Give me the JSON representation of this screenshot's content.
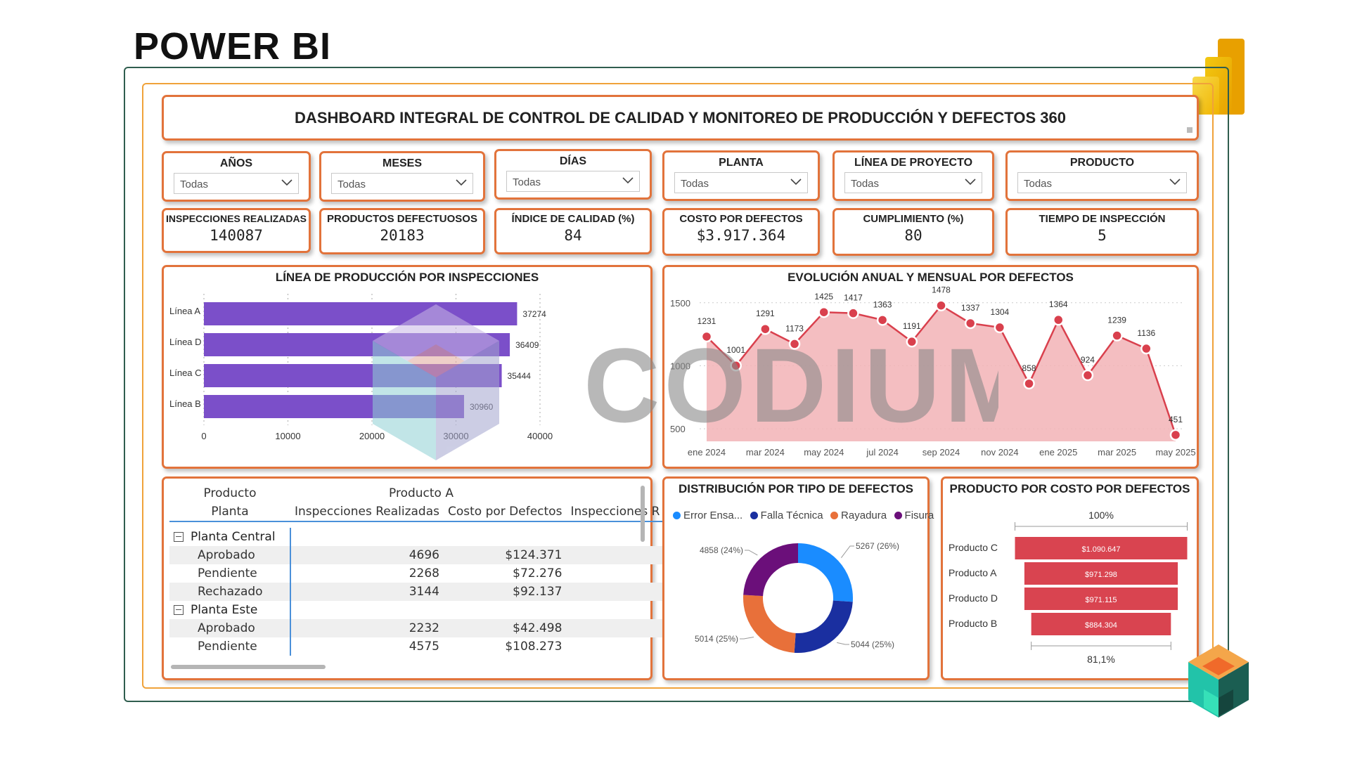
{
  "page_title": "POWER BI",
  "dashboard_title": "DASHBOARD INTEGRAL DE CONTROL DE CALIDAD Y MONITOREO DE PRODUCCIÓN Y DEFECTOS 360",
  "watermark": "CODIUM",
  "colors": {
    "accent_border": "#e2733b",
    "bar_purple": "#7b4fc9",
    "line_red": "#d9404d",
    "area_pink": "#f2b3b6",
    "funnel_red": "#d94450"
  },
  "slicers": [
    {
      "label": "AÑOS",
      "value": "Todas"
    },
    {
      "label": "MESES",
      "value": "Todas"
    },
    {
      "label": "DÍAS",
      "value": "Todas"
    },
    {
      "label": "PLANTA",
      "value": "Todas"
    },
    {
      "label": "LÍNEA DE PROYECTO",
      "value": "Todas"
    },
    {
      "label": "PRODUCTO",
      "value": "Todas"
    }
  ],
  "kpis": [
    {
      "label": "INSPECCIONES REALIZADAS",
      "value": "140087"
    },
    {
      "label": "PRODUCTOS DEFECTUOSOS",
      "value": "20183"
    },
    {
      "label": "ÍNDICE DE CALIDAD (%)",
      "value": "84"
    },
    {
      "label": "COSTO POR DEFECTOS",
      "value": "$3.917.364"
    },
    {
      "label": "CUMPLIMIENTO (%)",
      "value": "80"
    },
    {
      "label": "TIEMPO DE INSPECCIÓN",
      "value": "5"
    }
  ],
  "matrix": {
    "col_group_label": "Producto",
    "col_group_value": "Producto A",
    "row_header": "Planta",
    "columns": [
      "Inspecciones Realizadas",
      "Costo por Defectos",
      "Inspecciones R"
    ],
    "groups": [
      {
        "name": "Planta Central",
        "rows": [
          {
            "label": "Aprobado",
            "inspecciones": "4696",
            "costo": "$124.371"
          },
          {
            "label": "Pendiente",
            "inspecciones": "2268",
            "costo": "$72.276"
          },
          {
            "label": "Rechazado",
            "inspecciones": "3144",
            "costo": "$92.137"
          }
        ]
      },
      {
        "name": "Planta Este",
        "rows": [
          {
            "label": "Aprobado",
            "inspecciones": "2232",
            "costo": "$42.498"
          },
          {
            "label": "Pendiente",
            "inspecciones": "4575",
            "costo": "$108.273"
          }
        ]
      }
    ]
  },
  "chart_data": [
    {
      "type": "bar",
      "orientation": "horizontal",
      "title": "LÍNEA DE PRODUCCIÓN POR INSPECCIONES",
      "categories": [
        "Línea A",
        "Línea D",
        "Línea C",
        "Línea B"
      ],
      "values": [
        37274,
        36409,
        35444,
        30960
      ],
      "xlim": [
        0,
        40000
      ],
      "xticks": [
        0,
        10000,
        20000,
        30000,
        40000
      ],
      "grid": true
    },
    {
      "type": "area",
      "title": "EVOLUCIÓN ANUAL Y MENSUAL POR DEFECTOS",
      "x": [
        "ene 2024",
        "feb 2024",
        "mar 2024",
        "abr 2024",
        "may 2024",
        "jun 2024",
        "jul 2024",
        "ago 2024",
        "sep 2024",
        "oct 2024",
        "nov 2024",
        "dic 2024",
        "ene 2025",
        "feb 2025",
        "mar 2025",
        "abr 2025",
        "may 2025"
      ],
      "values": [
        1231,
        1001,
        1291,
        1173,
        1425,
        1417,
        1363,
        1191,
        1478,
        1337,
        1304,
        858,
        1364,
        924,
        1239,
        1136,
        451
      ],
      "xtick_labels": [
        "ene 2024",
        "mar 2024",
        "may 2024",
        "jul 2024",
        "sep 2024",
        "nov 2024",
        "ene 2025",
        "mar 2025",
        "may 2025"
      ],
      "yticks": [
        500,
        1000,
        1500
      ],
      "ylim": [
        400,
        1560
      ]
    },
    {
      "type": "pie",
      "subtype": "donut",
      "title": "DISTRIBUCIÓN POR TIPO DE DEFECTOS",
      "legend_labels": [
        "Error Ensa...",
        "Falla Técnica",
        "Rayadura",
        "Fisura"
      ],
      "values": [
        5267,
        5044,
        5014,
        4858
      ],
      "labels": [
        "5267 (26%)",
        "5044 (25%)",
        "5014 (25%)",
        "4858 (24%)"
      ],
      "colors": [
        "#1a8cff",
        "#1a2fa0",
        "#e8703a",
        "#6b0f7a"
      ],
      "legend_position": "top-left"
    },
    {
      "type": "bar",
      "subtype": "funnel",
      "title": "PRODUCTO POR COSTO POR DEFECTOS",
      "categories": [
        "Producto C",
        "Producto A",
        "Producto D",
        "Producto B"
      ],
      "values": [
        1090647,
        971298,
        971115,
        884304
      ],
      "value_labels": [
        "$1.090.647",
        "$971.298",
        "$971.115",
        "$884.304"
      ],
      "top_label": "100%",
      "bottom_label": "81,1%"
    }
  ]
}
